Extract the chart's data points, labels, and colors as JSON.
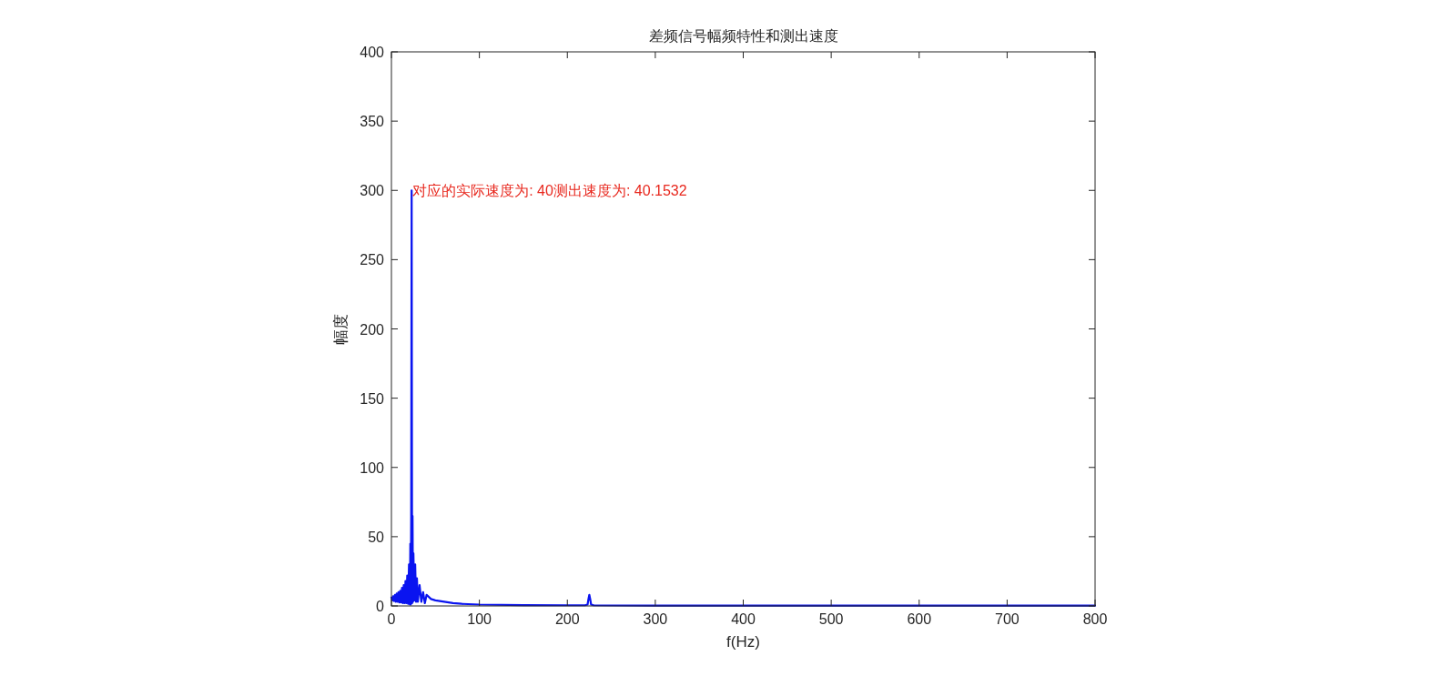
{
  "chart_data": {
    "type": "line",
    "title": "差频信号幅频特性和测出速度",
    "xlabel": "f(Hz)",
    "ylabel": "幅度",
    "x": [
      0,
      1,
      2,
      3,
      4,
      5,
      6,
      7,
      8,
      9,
      10,
      11,
      12,
      13,
      14,
      15,
      16,
      17,
      18,
      19,
      20,
      21,
      21.5,
      22,
      22.5,
      23,
      23.5,
      24,
      24.5,
      25,
      26,
      27,
      28,
      29,
      30,
      32,
      34,
      36,
      38,
      40,
      45,
      50,
      60,
      70,
      80,
      100,
      150,
      200,
      220,
      223,
      224,
      225,
      226,
      227,
      230,
      300,
      400,
      500,
      600,
      700,
      800
    ],
    "series": [
      {
        "color": "#0a14f0",
        "values": [
          6,
          4,
          7,
          3.5,
          8,
          3,
          9,
          3,
          10,
          2.5,
          11,
          2.5,
          13,
          2,
          15,
          2,
          18,
          2,
          22,
          1.5,
          30,
          1,
          45,
          1,
          65,
          300,
          2,
          65,
          3,
          38,
          4,
          30,
          3,
          20,
          3,
          15,
          3,
          10,
          2,
          8,
          5,
          4,
          3,
          2,
          1.5,
          1,
          0.6,
          0.5,
          0.5,
          1,
          5,
          8,
          5,
          1,
          0.5,
          0.3,
          0.2,
          0.2,
          0.2,
          0.2,
          0.2
        ]
      }
    ],
    "xlim": [
      0,
      800
    ],
    "xticks": [
      0,
      100,
      200,
      300,
      400,
      500,
      600,
      700,
      800
    ],
    "ylim": [
      0,
      400
    ],
    "yticks": [
      0,
      50,
      100,
      150,
      200,
      250,
      300,
      350,
      400
    ],
    "grid": false,
    "marker": "none",
    "line_style": "solid",
    "annotations": [
      {
        "text": "对应的实际速度为: 40测出速度为: 40.1532",
        "x": 23,
        "y": 300
      }
    ]
  }
}
